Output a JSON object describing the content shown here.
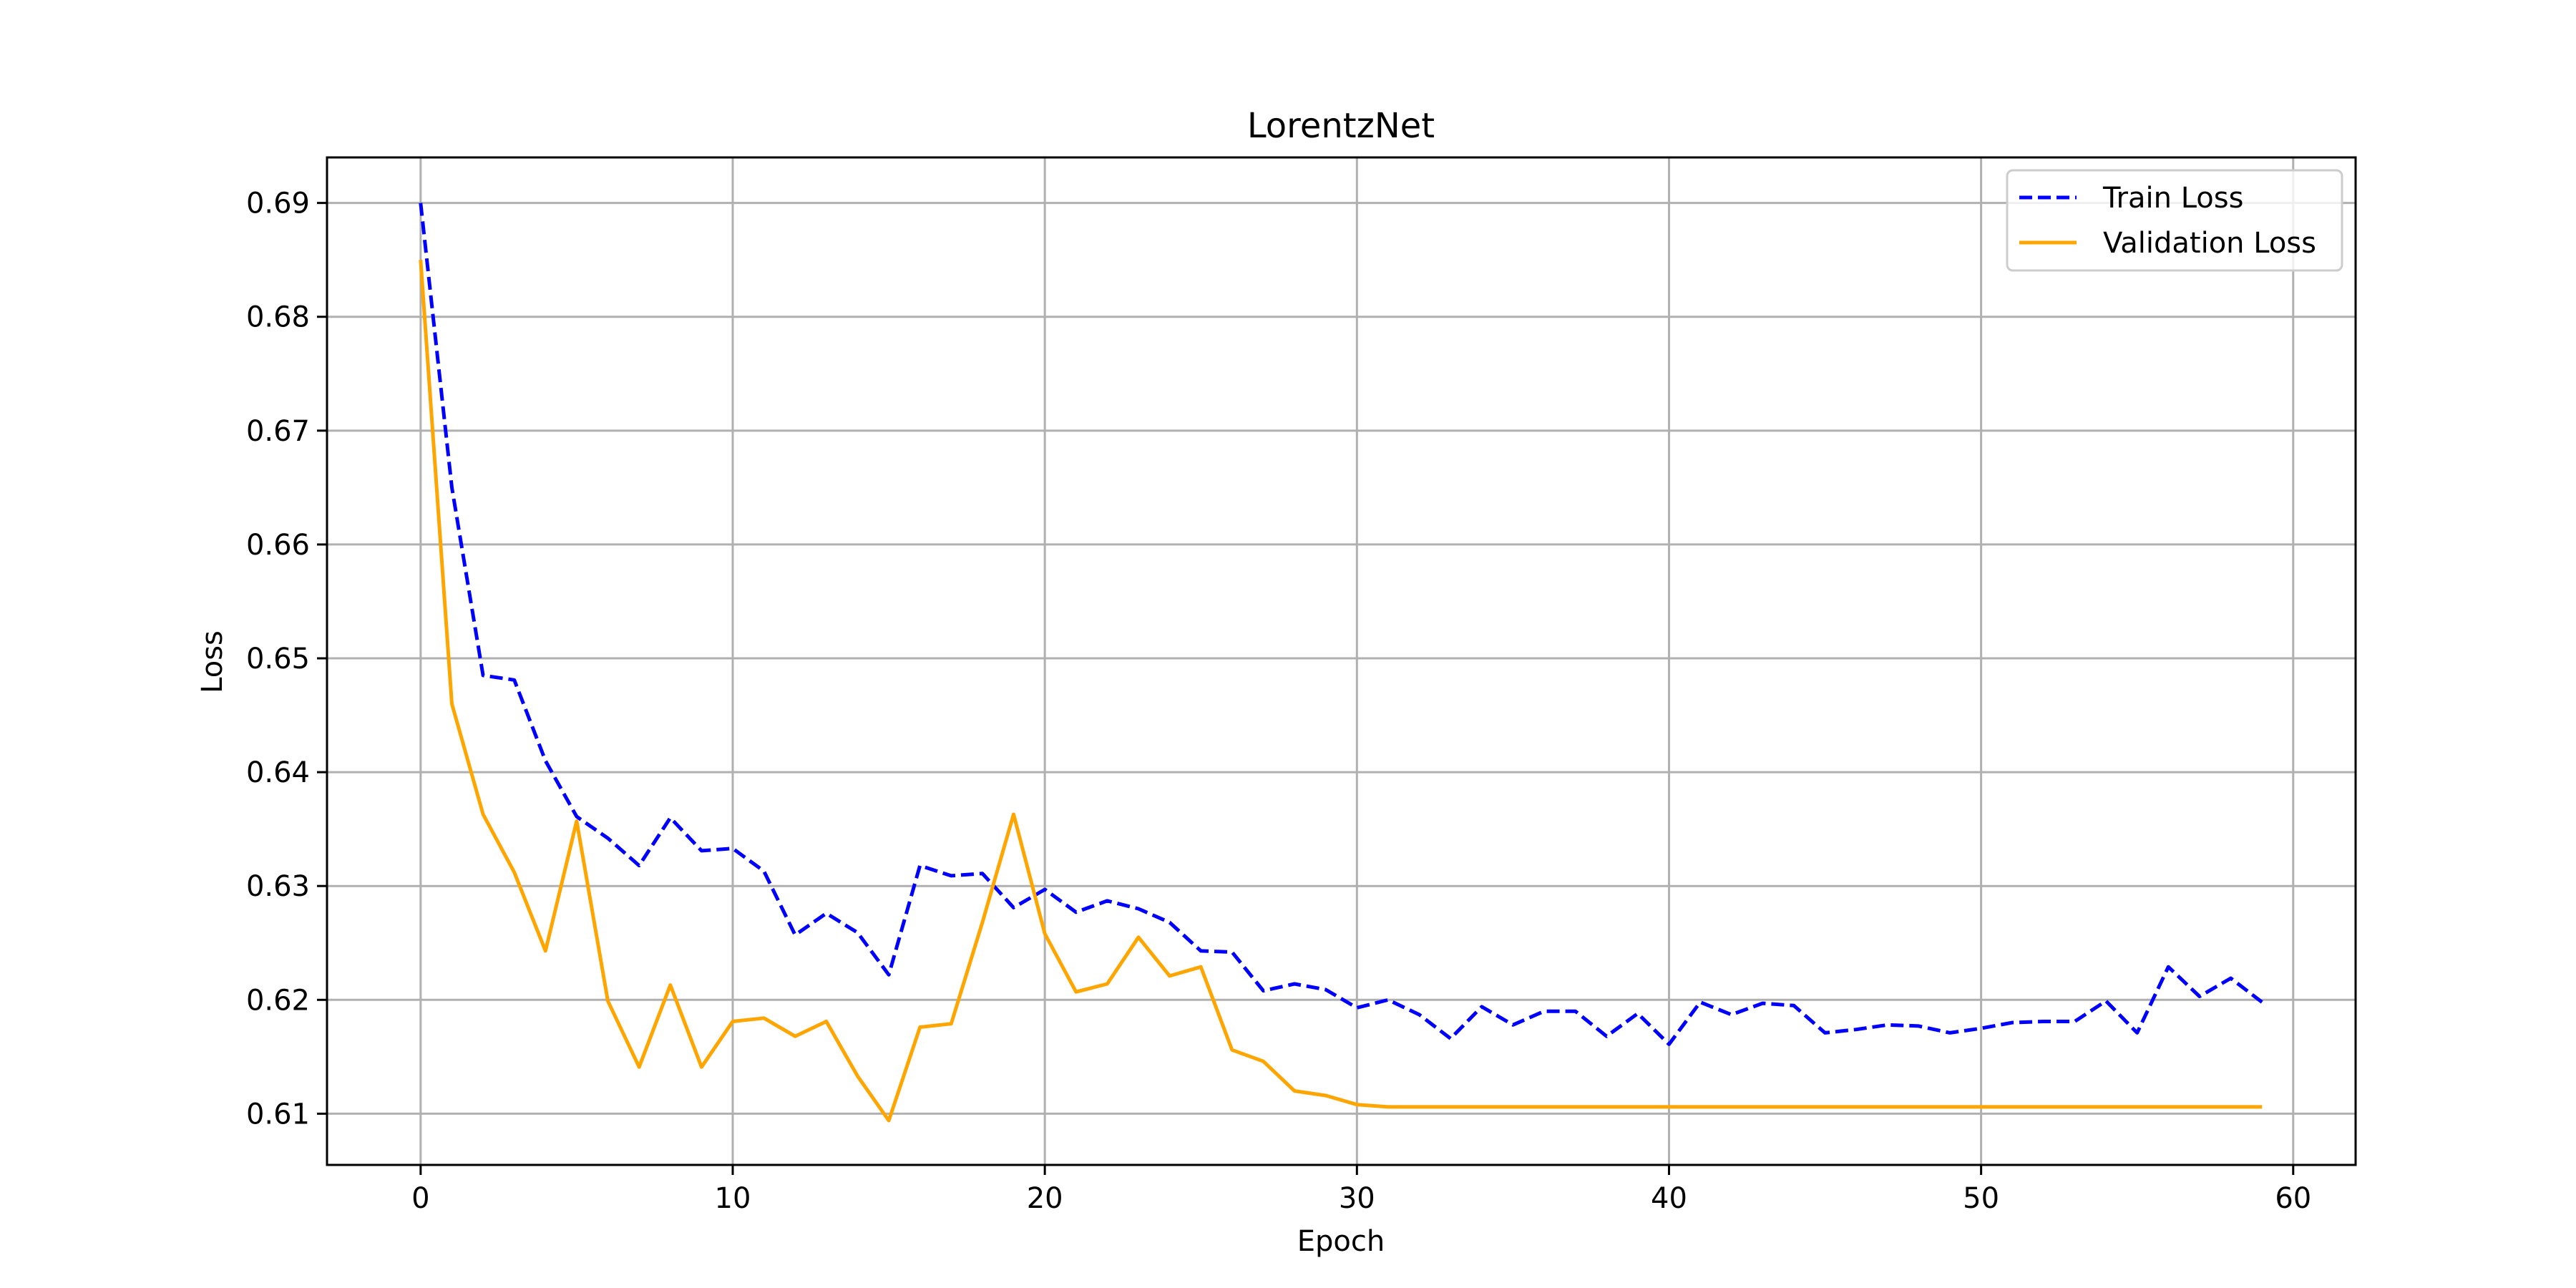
{
  "chart_data": {
    "type": "line",
    "title": "LorentzNet",
    "xlabel": "Epoch",
    "ylabel": "Loss",
    "xlim": [
      -3,
      62
    ],
    "ylim": [
      0.6055,
      0.694
    ],
    "x_ticks": [
      0,
      10,
      20,
      30,
      40,
      50,
      60
    ],
    "y_ticks": [
      0.61,
      0.62,
      0.63,
      0.64,
      0.65,
      0.66,
      0.67,
      0.68,
      0.69
    ],
    "x_tick_labels": [
      "0",
      "10",
      "20",
      "30",
      "40",
      "50",
      "60"
    ],
    "y_tick_labels": [
      "0.61",
      "0.62",
      "0.63",
      "0.64",
      "0.65",
      "0.66",
      "0.67",
      "0.68",
      "0.69"
    ],
    "grid": true,
    "legend_position": "top-right",
    "x": [
      0,
      1,
      2,
      3,
      4,
      5,
      6,
      7,
      8,
      9,
      10,
      11,
      12,
      13,
      14,
      15,
      16,
      17,
      18,
      19,
      20,
      21,
      22,
      23,
      24,
      25,
      26,
      27,
      28,
      29,
      30,
      31,
      32,
      33,
      34,
      35,
      36,
      37,
      38,
      39,
      40,
      41,
      42,
      43,
      44,
      45,
      46,
      47,
      48,
      49,
      50,
      51,
      52,
      53,
      54,
      55,
      56,
      57,
      58,
      59
    ],
    "series": [
      {
        "name": "Train Loss",
        "color": "#0000ff",
        "line_style": "dashed",
        "values": [
          0.69,
          0.665,
          0.6485,
          0.6481,
          0.641,
          0.6361,
          0.6342,
          0.6318,
          0.636,
          0.6331,
          0.6333,
          0.6313,
          0.6257,
          0.6276,
          0.6259,
          0.6222,
          0.6318,
          0.6309,
          0.6311,
          0.6281,
          0.6297,
          0.6277,
          0.6287,
          0.628,
          0.6268,
          0.6243,
          0.6242,
          0.6208,
          0.6214,
          0.6209,
          0.6193,
          0.62,
          0.6187,
          0.6166,
          0.6194,
          0.6178,
          0.619,
          0.619,
          0.6168,
          0.6188,
          0.6161,
          0.6198,
          0.6187,
          0.6197,
          0.6195,
          0.6171,
          0.6174,
          0.6178,
          0.6177,
          0.6171,
          0.6175,
          0.618,
          0.6181,
          0.6181,
          0.6199,
          0.6171,
          0.6229,
          0.6203,
          0.6219,
          0.6198
        ]
      },
      {
        "name": "Validation Loss",
        "color": "#ffa500",
        "line_style": "solid",
        "values": [
          0.685,
          0.646,
          0.6363,
          0.6312,
          0.6243,
          0.6357,
          0.6199,
          0.6141,
          0.6213,
          0.6141,
          0.6181,
          0.6184,
          0.6168,
          0.6181,
          0.6133,
          0.6094,
          0.6176,
          0.6179,
          0.6268,
          0.6363,
          0.6258,
          0.6207,
          0.6214,
          0.6255,
          0.6221,
          0.6229,
          0.6156,
          0.6146,
          0.612,
          0.6116,
          0.6108,
          0.6106,
          0.6106,
          0.6106,
          0.6106,
          0.6106,
          0.6106,
          0.6106,
          0.6106,
          0.6106,
          0.6106,
          0.6106,
          0.6106,
          0.6106,
          0.6106,
          0.6106,
          0.6106,
          0.6106,
          0.6106,
          0.6106,
          0.6106,
          0.6106,
          0.6106,
          0.6106,
          0.6106,
          0.6106,
          0.6106,
          0.6106,
          0.6106,
          0.6106
        ]
      }
    ]
  }
}
